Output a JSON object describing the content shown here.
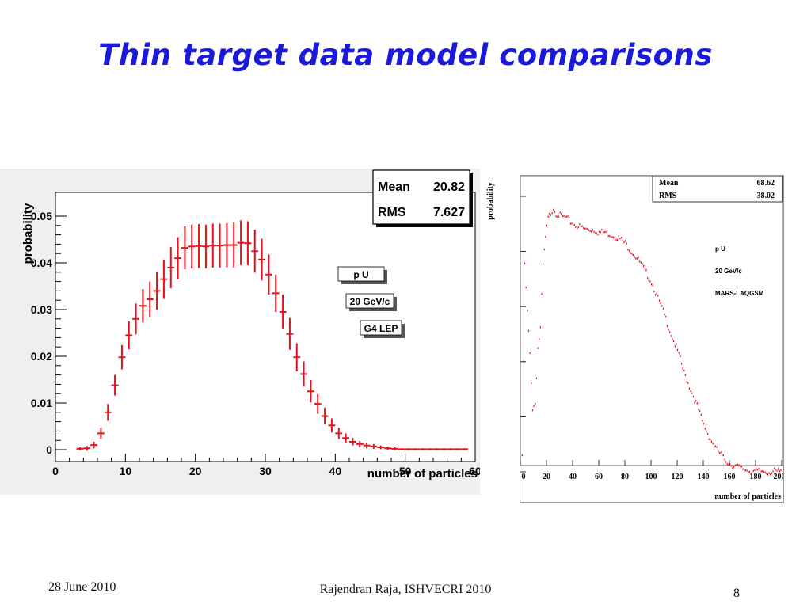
{
  "slide": {
    "title": "Thin target data model comparisons",
    "footer_date": "28 June 2010",
    "footer_author": "Rajendran Raja, ISHVECRI 2010",
    "page_number": "8"
  },
  "chart_data": [
    {
      "type": "scatter",
      "subtype": "histogram-with-error-bars",
      "ylabel": "probability",
      "xlabel": "number of particles",
      "xlim": [
        0,
        60
      ],
      "ylim": [
        0,
        0.05
      ],
      "x_ticks": [
        "0",
        "10",
        "20",
        "30",
        "40",
        "50",
        "60"
      ],
      "y_ticks": [
        "0",
        "0.01",
        "0.02",
        "0.03",
        "0.04",
        "0.05"
      ],
      "color": "#e8101a",
      "stats": [
        {
          "label": "Mean",
          "value": "20.82"
        },
        {
          "label": "RMS",
          "value": "7.627"
        }
      ],
      "annotations": [
        "p U",
        "20 GeV/c",
        "G4 LEP"
      ],
      "series": [
        {
          "x": [
            3,
            4,
            5,
            6,
            7,
            8,
            9,
            10,
            11,
            12,
            13,
            14,
            15,
            16,
            17,
            18,
            19,
            20,
            21,
            22,
            23,
            24,
            25,
            26,
            27,
            28,
            29,
            30,
            31,
            32,
            33,
            34,
            35,
            36,
            37,
            38,
            39,
            40,
            41,
            42,
            43,
            44,
            45,
            46,
            47,
            48,
            49,
            50,
            51,
            52,
            53,
            54,
            55,
            56,
            57,
            58
          ],
          "y": [
            0.0002,
            0.0003,
            0.001,
            0.0035,
            0.008,
            0.0138,
            0.0198,
            0.0245,
            0.028,
            0.0308,
            0.0322,
            0.034,
            0.0365,
            0.039,
            0.041,
            0.0432,
            0.0435,
            0.0436,
            0.0435,
            0.0437,
            0.0437,
            0.0438,
            0.0438,
            0.0443,
            0.0442,
            0.0425,
            0.0407,
            0.0375,
            0.0335,
            0.0295,
            0.0248,
            0.0198,
            0.0162,
            0.0125,
            0.0098,
            0.0072,
            0.0052,
            0.0035,
            0.0025,
            0.0017,
            0.0012,
            0.0009,
            0.0007,
            0.0005,
            0.0003,
            0.0002,
            0.0001,
            0.0001,
            0.0001,
            0.0001,
            0.0001,
            0.0001,
            0.0001,
            0.0001,
            0.0001,
            0.0001
          ],
          "err": [
            0.0003,
            0.0005,
            0.0007,
            0.0012,
            0.0018,
            0.0022,
            0.0026,
            0.003,
            0.0033,
            0.0036,
            0.0038,
            0.004,
            0.0042,
            0.0044,
            0.0045,
            0.0046,
            0.0047,
            0.0047,
            0.0047,
            0.0047,
            0.0047,
            0.0047,
            0.0048,
            0.0048,
            0.0047,
            0.0046,
            0.0045,
            0.0043,
            0.004,
            0.0037,
            0.0034,
            0.003,
            0.0027,
            0.0024,
            0.0021,
            0.0018,
            0.0015,
            0.0012,
            0.001,
            0.0008,
            0.0007,
            0.0006,
            0.0005,
            0.0004,
            0.0003,
            0.0003,
            0.0002,
            0.0002,
            0.0002,
            0.0002,
            0.0002,
            0.0002,
            0.0002,
            0.0002,
            0.0002,
            0.0002
          ]
        }
      ]
    },
    {
      "type": "scatter",
      "ylabel": "probability",
      "xlabel": "number of particles",
      "xlim": [
        0,
        200
      ],
      "ylim": [
        0,
        0.011
      ],
      "x_ticks": [
        "0",
        "20",
        "40",
        "60",
        "80",
        "100",
        "120",
        "140",
        "160",
        "180",
        "200"
      ],
      "y_ticks": [
        "0",
        "0.002",
        "0.004",
        "0.006",
        "0.008",
        "0.01"
      ],
      "color": "#e8101a",
      "stats": [
        {
          "label": "Mean",
          "value": "68.62"
        },
        {
          "label": "RMS",
          "value": "38.02"
        }
      ],
      "annotations": [
        "p U",
        "20 GeV/c",
        "MARS-LAQGSM"
      ],
      "series": [
        {
          "x": [
            1,
            3,
            5,
            7,
            9,
            11,
            13,
            15,
            17,
            19,
            21,
            23,
            25,
            27,
            30,
            35,
            40,
            45,
            50,
            55,
            60,
            65,
            70,
            75,
            80,
            85,
            90,
            95,
            100,
            105,
            110,
            115,
            120,
            125,
            130,
            135,
            140,
            145,
            150,
            155,
            160,
            165,
            170,
            175,
            180,
            185,
            190,
            195,
            200
          ],
          "y": [
            0.0005,
            0.0075,
            0.0058,
            0.0043,
            0.0023,
            0.0025,
            0.0045,
            0.0052,
            0.0075,
            0.0085,
            0.0092,
            0.0094,
            0.0096,
            0.0094,
            0.0093,
            0.0092,
            0.009,
            0.0089,
            0.0088,
            0.0088,
            0.0087,
            0.0087,
            0.0086,
            0.0085,
            0.0083,
            0.008,
            0.0077,
            0.0073,
            0.0069,
            0.0063,
            0.0057,
            0.005,
            0.0044,
            0.0036,
            0.003,
            0.0024,
            0.0017,
            0.0012,
            0.0008,
            0.0005,
            0.0003,
            0.0002,
            0.0001,
            5e-05,
            3e-05,
            2e-05,
            1e-05,
            1e-05,
            0.0
          ]
        }
      ]
    }
  ]
}
